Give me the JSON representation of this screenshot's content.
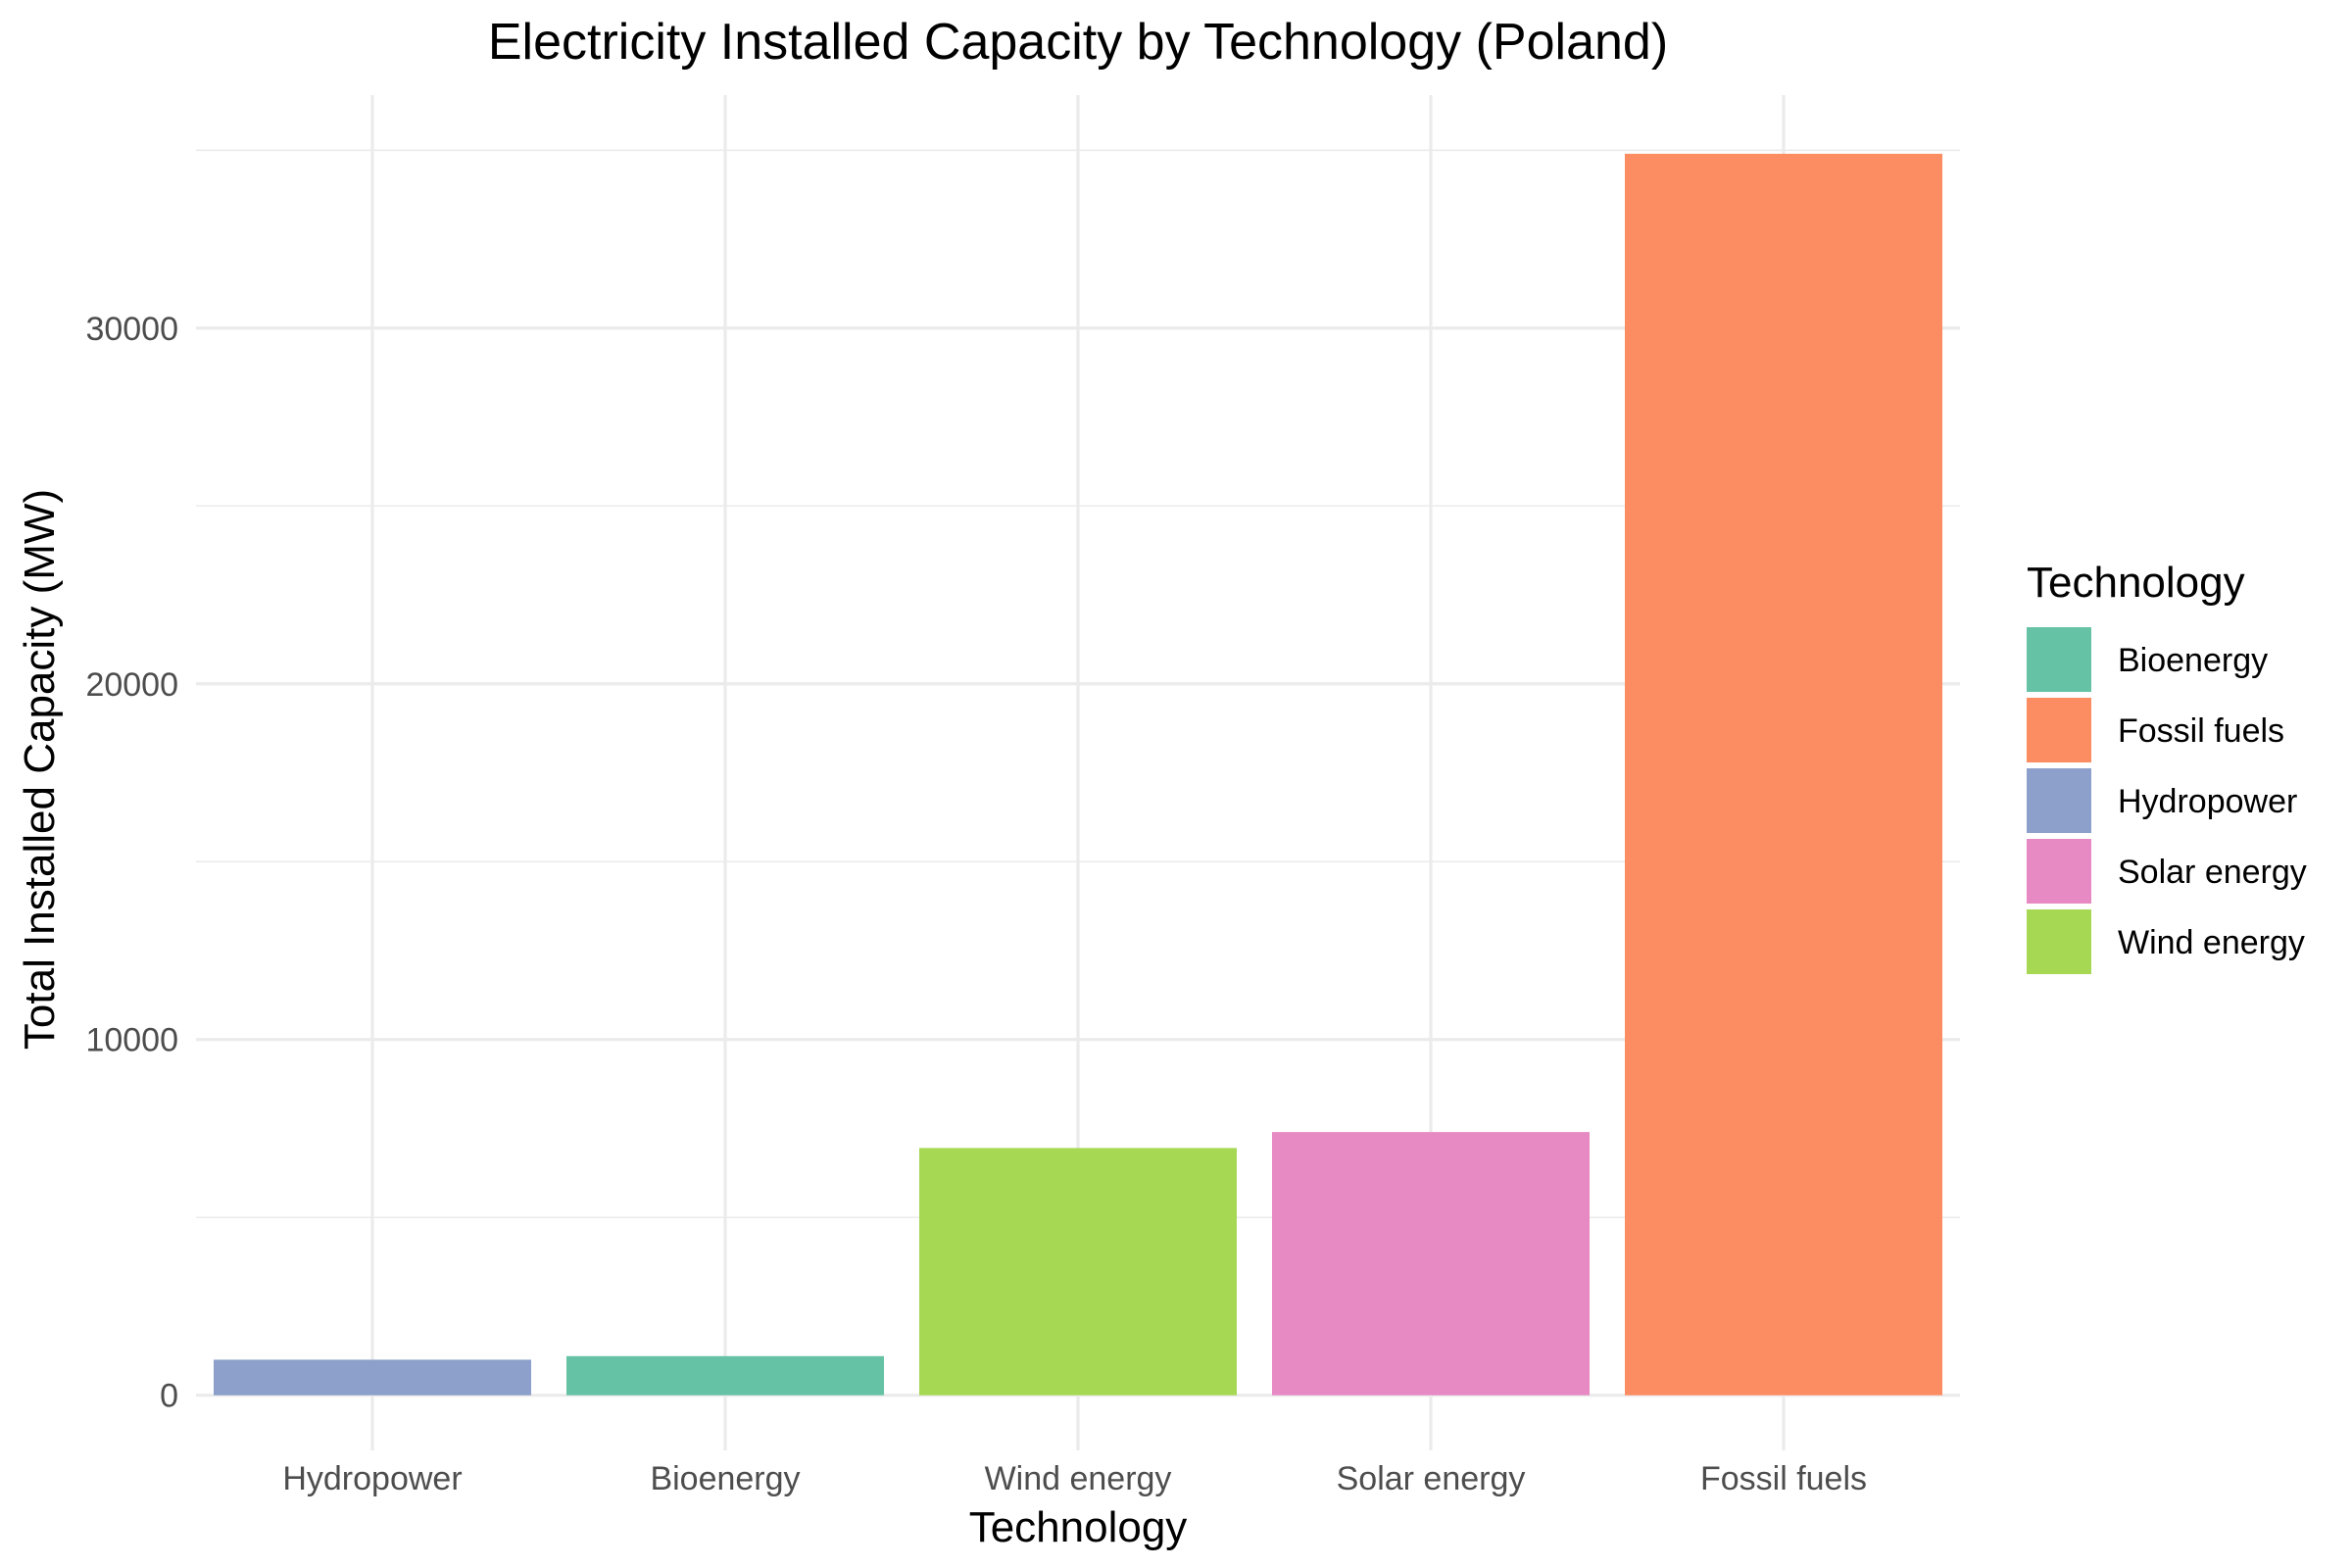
{
  "chart_data": {
    "type": "bar",
    "title": "Electricity Installed Capacity by Technology (Poland)",
    "xlabel": "Technology",
    "ylabel": "Total Installed Capacity (MW)",
    "categories": [
      "Hydropower",
      "Bioenergy",
      "Wind energy",
      "Solar energy",
      "Fossil fuels"
    ],
    "values": [
      1000,
      1100,
      6950,
      7400,
      34900
    ],
    "colors": [
      "#8DA0CB",
      "#66C2A5",
      "#A6D854",
      "#E78AC3",
      "#FC8D62"
    ],
    "yticks": [
      0,
      10000,
      20000,
      30000
    ],
    "ylim": [
      -1550,
      36550
    ],
    "grid": true,
    "legend": {
      "title": "Technology",
      "placement": "right",
      "items": [
        {
          "label": "Bioenergy",
          "color": "#66C2A5"
        },
        {
          "label": "Fossil fuels",
          "color": "#FC8D62"
        },
        {
          "label": "Hydropower",
          "color": "#8DA0CB"
        },
        {
          "label": "Solar energy",
          "color": "#E78AC3"
        },
        {
          "label": "Wind energy",
          "color": "#A6D854"
        }
      ]
    }
  }
}
